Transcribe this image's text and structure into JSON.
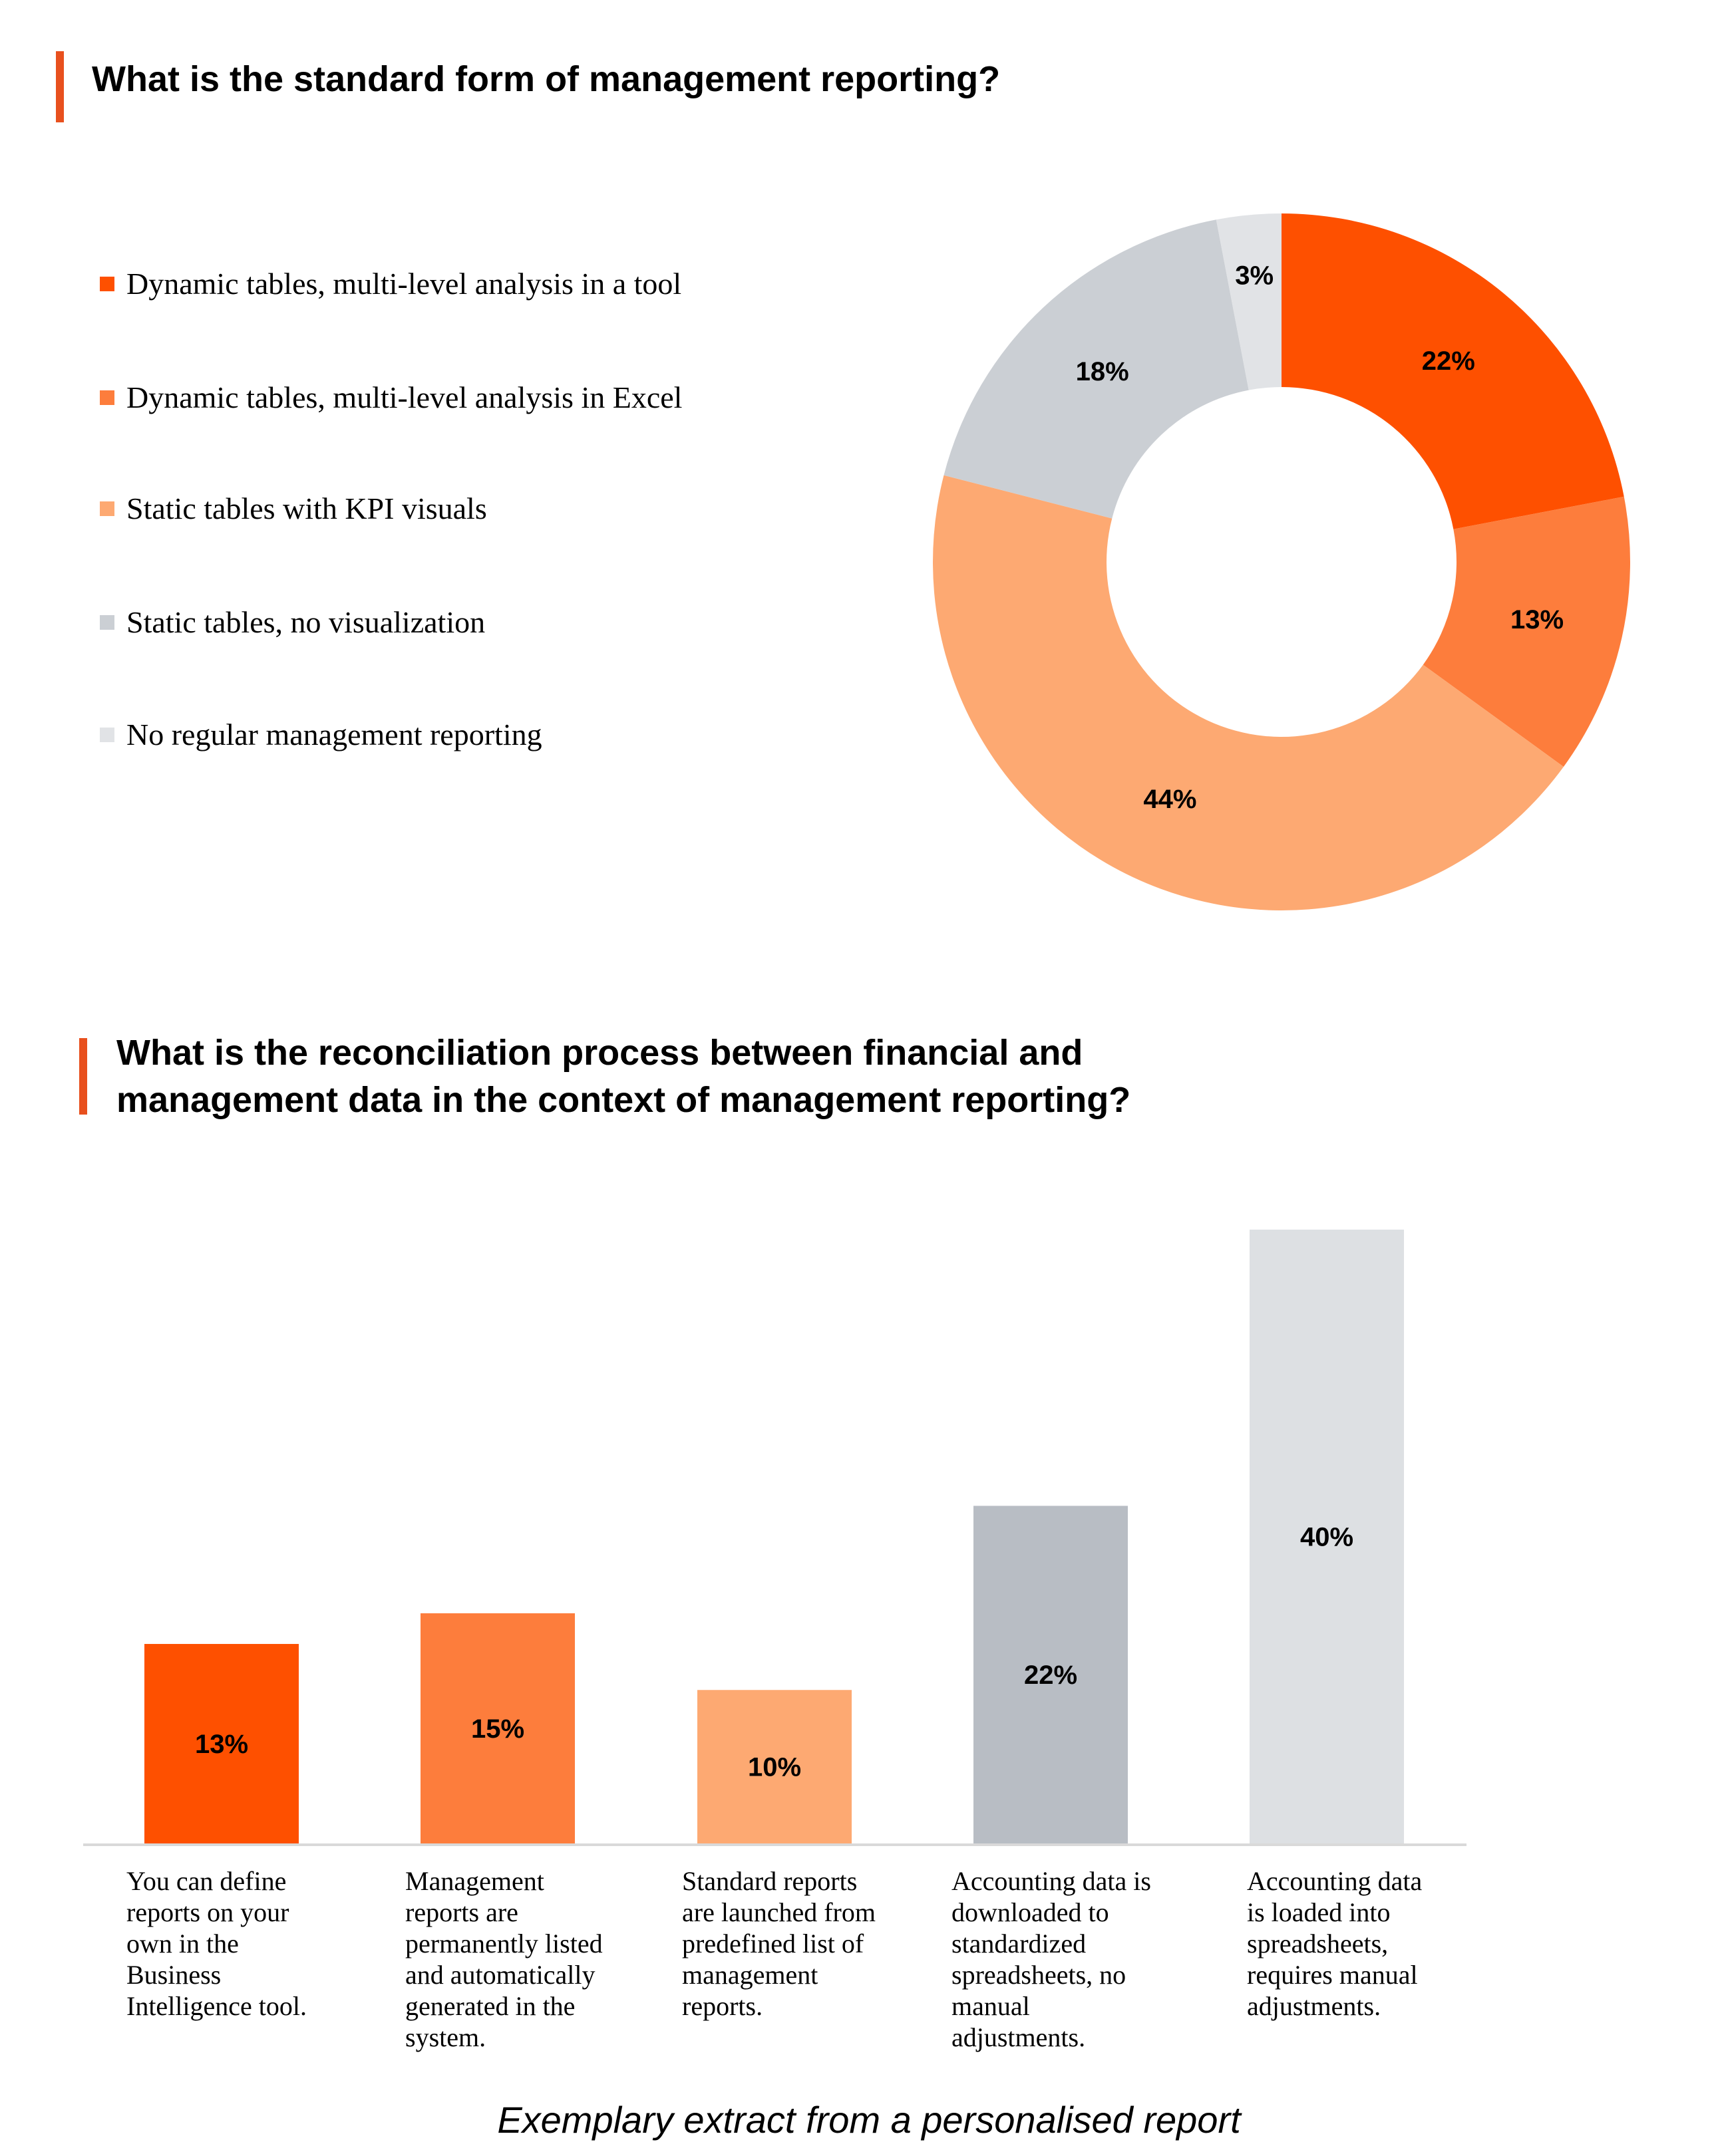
{
  "chart_data": [
    {
      "type": "pie",
      "variant": "donut",
      "title": "What is the standard form of management reporting?",
      "legend_position": "left",
      "slices": [
        {
          "name": "Dynamic tables, multi-level analysis in a tool",
          "value": 22,
          "label": "22%",
          "color": "#FE5000"
        },
        {
          "name": "Dynamic tables, multi-level analysis in Excel",
          "value": 13,
          "label": "13%",
          "color": "#FD7D3C"
        },
        {
          "name": "Static tables with KPI visuals",
          "value": 44,
          "label": "44%",
          "color": "#FDA972"
        },
        {
          "name": "Static tables, no visualization",
          "value": 18,
          "label": "18%",
          "color": "#CBCFD4"
        },
        {
          "name": "No regular management reporting",
          "value": 3,
          "label": "3%",
          "color": "#E1E3E6"
        }
      ]
    },
    {
      "type": "bar",
      "title_lines": [
        "What is the reconciliation process between financial and",
        "management data in the context of management reporting?"
      ],
      "grid": false,
      "ylim": [
        0,
        40
      ],
      "categories": [
        [
          "You can define",
          "reports on your",
          "own in the",
          "Business",
          "Intelligence tool."
        ],
        [
          "Management",
          "reports are",
          "permanently listed",
          "and automatically",
          "generated in the",
          "system."
        ],
        [
          "Standard reports",
          "are launched from",
          "predefined list of",
          "management",
          "reports."
        ],
        [
          "Accounting data is",
          "downloaded to",
          "standardized",
          "spreadsheets, no",
          "manual",
          "adjustments."
        ],
        [
          "Accounting data",
          "is loaded into",
          "spreadsheets,",
          "requires manual",
          "adjustments."
        ]
      ],
      "values": [
        13,
        15,
        10,
        22,
        40
      ],
      "labels": [
        "13%",
        "15%",
        "10%",
        "22%",
        "40%"
      ],
      "colors": [
        "#FE5000",
        "#FD7D3C",
        "#FDA972",
        "#B8BDC4",
        "#DDE0E3"
      ]
    }
  ],
  "accent_color": "#E8501E",
  "caption": "Exemplary extract from a personalised report"
}
